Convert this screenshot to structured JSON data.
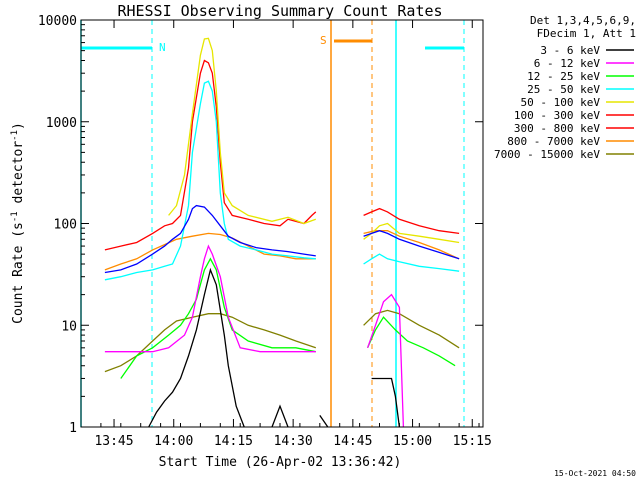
{
  "chart_data": {
    "type": "line",
    "title": "RHESSI Observing Summary Count Rates",
    "xlabel": "Start Time (26-Apr-02 13:36:42)",
    "ylabel": "Count Rate (s⁻¹ detector⁻¹)",
    "ylabel_main": "Count Rate (s",
    "ylabel_sup1": "-1",
    "ylabel_mid": " detector",
    "ylabel_sup2": "-1",
    "ylabel_end": ")",
    "y_scale": "log",
    "ylim": [
      1,
      10000
    ],
    "xlim_minutes_after_start": [
      0,
      101
    ],
    "x_ticks": [
      {
        "label": "13:45",
        "minutes": 8.3
      },
      {
        "label": "14:00",
        "minutes": 23.3
      },
      {
        "label": "14:15",
        "minutes": 38.3
      },
      {
        "label": "14:30",
        "minutes": 53.3
      },
      {
        "label": "14:45",
        "minutes": 68.3
      },
      {
        "label": "15:00",
        "minutes": 83.3
      },
      {
        "label": "15:15",
        "minutes": 98.3
      }
    ],
    "y_ticks": [
      {
        "label": "1",
        "value": 1
      },
      {
        "label": "10",
        "value": 10
      },
      {
        "label": "100",
        "value": 100
      },
      {
        "label": "1000",
        "value": 1000
      },
      {
        "label": "10000",
        "value": 10000
      }
    ],
    "legend_header": [
      "Det 1,3,4,5,6,9,",
      "FDecim 1, Att 1"
    ],
    "legend_position": "right",
    "series": [
      {
        "name": "3 - 6 keV",
        "color": "#000000",
        "points": [
          [
            17,
            1
          ],
          [
            19,
            1.4
          ],
          [
            21,
            1.8
          ],
          [
            23,
            2.2
          ],
          [
            25,
            3
          ],
          [
            27,
            5
          ],
          [
            29,
            9
          ],
          [
            31,
            20
          ],
          [
            32.5,
            35
          ],
          [
            34,
            25
          ],
          [
            36,
            8
          ],
          [
            37,
            4
          ],
          [
            39,
            1.6
          ],
          [
            41,
            1
          ],
          [
            null,
            null
          ],
          [
            48,
            1
          ],
          [
            50,
            1.6
          ],
          [
            52,
            1
          ],
          [
            null,
            null
          ],
          [
            60,
            1.3
          ],
          [
            62,
            1
          ],
          [
            null,
            null
          ],
          [
            73,
            3
          ],
          [
            78,
            3
          ],
          [
            79,
            2
          ],
          [
            80,
            1
          ]
        ]
      },
      {
        "name": "6 - 12 keV",
        "color": "#ff00ff",
        "points": [
          [
            6,
            5.5
          ],
          [
            12,
            5.5
          ],
          [
            18,
            5.5
          ],
          [
            22,
            6
          ],
          [
            26,
            8
          ],
          [
            28,
            12
          ],
          [
            30,
            30
          ],
          [
            31,
            45
          ],
          [
            32,
            60
          ],
          [
            33,
            50
          ],
          [
            35,
            30
          ],
          [
            37,
            12
          ],
          [
            40,
            6
          ],
          [
            45,
            5.5
          ],
          [
            54,
            5.5
          ],
          [
            59,
            5.5
          ],
          [
            null,
            null
          ],
          [
            72,
            6
          ],
          [
            74,
            10
          ],
          [
            76,
            17
          ],
          [
            78,
            20
          ],
          [
            80,
            15
          ],
          [
            81,
            1
          ]
        ]
      },
      {
        "name": "12 - 25 keV",
        "color": "#00ff00",
        "points": [
          [
            10,
            3
          ],
          [
            14,
            5
          ],
          [
            18,
            6
          ],
          [
            22,
            8
          ],
          [
            25,
            10
          ],
          [
            27,
            13
          ],
          [
            29,
            18
          ],
          [
            31,
            35
          ],
          [
            32.5,
            45
          ],
          [
            34,
            35
          ],
          [
            36,
            15
          ],
          [
            38,
            9
          ],
          [
            42,
            7
          ],
          [
            48,
            6
          ],
          [
            54,
            6
          ],
          [
            59,
            5.5
          ],
          [
            null,
            null
          ],
          [
            72,
            6
          ],
          [
            74,
            9
          ],
          [
            76,
            12
          ],
          [
            79,
            9
          ],
          [
            82,
            7
          ],
          [
            86,
            6
          ],
          [
            90,
            5
          ],
          [
            94,
            4
          ]
        ]
      },
      {
        "name": "25 - 50 keV",
        "color": "#00ffff",
        "points": [
          [
            6,
            28
          ],
          [
            10,
            30
          ],
          [
            14,
            33
          ],
          [
            18,
            35
          ],
          [
            21,
            38
          ],
          [
            23,
            40
          ],
          [
            25,
            60
          ],
          [
            27,
            150
          ],
          [
            28,
            500
          ],
          [
            30,
            1500
          ],
          [
            31,
            2400
          ],
          [
            32,
            2500
          ],
          [
            33,
            2000
          ],
          [
            34,
            1000
          ],
          [
            35,
            200
          ],
          [
            36,
            100
          ],
          [
            37,
            70
          ],
          [
            40,
            60
          ],
          [
            44,
            55
          ],
          [
            48,
            50
          ],
          [
            52,
            48
          ],
          [
            56,
            46
          ],
          [
            59,
            45
          ],
          [
            null,
            null
          ],
          [
            71,
            40
          ],
          [
            73,
            45
          ],
          [
            75,
            50
          ],
          [
            77,
            45
          ],
          [
            80,
            42
          ],
          [
            85,
            38
          ],
          [
            90,
            36
          ],
          [
            95,
            34
          ]
        ]
      },
      {
        "name": "50 - 100 keV",
        "color": "#e6e600",
        "points": [
          [
            22,
            120
          ],
          [
            24,
            150
          ],
          [
            26,
            300
          ],
          [
            28,
            1200
          ],
          [
            30,
            4500
          ],
          [
            31,
            6500
          ],
          [
            32,
            6600
          ],
          [
            33,
            5000
          ],
          [
            34,
            2000
          ],
          [
            35,
            500
          ],
          [
            36,
            200
          ],
          [
            38,
            150
          ],
          [
            42,
            120
          ],
          [
            48,
            105
          ],
          [
            52,
            115
          ],
          [
            56,
            100
          ],
          [
            59,
            110
          ],
          [
            null,
            null
          ],
          [
            71,
            70
          ],
          [
            73,
            80
          ],
          [
            75,
            95
          ],
          [
            77,
            100
          ],
          [
            80,
            80
          ],
          [
            85,
            75
          ],
          [
            90,
            70
          ],
          [
            95,
            65
          ]
        ]
      },
      {
        "name": "100 - 300 keV",
        "color": "#ff0000",
        "points": [
          [
            6,
            55
          ],
          [
            10,
            60
          ],
          [
            14,
            65
          ],
          [
            18,
            80
          ],
          [
            21,
            95
          ],
          [
            23,
            100
          ],
          [
            25,
            120
          ],
          [
            27,
            350
          ],
          [
            28,
            1000
          ],
          [
            30,
            3000
          ],
          [
            31,
            4000
          ],
          [
            32,
            3800
          ],
          [
            33,
            3000
          ],
          [
            34,
            1400
          ],
          [
            35,
            400
          ],
          [
            36,
            160
          ],
          [
            38,
            120
          ],
          [
            42,
            110
          ],
          [
            46,
            100
          ],
          [
            50,
            95
          ],
          [
            52,
            110
          ],
          [
            56,
            100
          ],
          [
            58,
            120
          ],
          [
            59,
            130
          ],
          [
            null,
            null
          ],
          [
            71,
            120
          ],
          [
            73,
            130
          ],
          [
            75,
            140
          ],
          [
            77,
            130
          ],
          [
            80,
            110
          ],
          [
            85,
            95
          ],
          [
            90,
            85
          ],
          [
            95,
            80
          ]
        ]
      },
      {
        "name": "300 - 800 keV",
        "color": "#ff0000",
        "points": []
      },
      {
        "name": "800 - 7000 keV",
        "color": "#ff8c00",
        "points": [
          [
            6,
            35
          ],
          [
            10,
            40
          ],
          [
            14,
            45
          ],
          [
            18,
            55
          ],
          [
            21,
            62
          ],
          [
            24,
            70
          ],
          [
            28,
            75
          ],
          [
            32,
            80
          ],
          [
            35,
            78
          ],
          [
            38,
            72
          ],
          [
            42,
            60
          ],
          [
            46,
            50
          ],
          [
            50,
            48
          ],
          [
            54,
            45
          ],
          [
            59,
            45
          ],
          [
            null,
            null
          ],
          [
            71,
            80
          ],
          [
            74,
            85
          ],
          [
            77,
            85
          ],
          [
            80,
            75
          ],
          [
            85,
            65
          ],
          [
            90,
            55
          ],
          [
            95,
            45
          ]
        ]
      },
      {
        "name": "7000 - 15000 keV",
        "color": "#808000",
        "points": [
          [
            6,
            3.5
          ],
          [
            10,
            4
          ],
          [
            14,
            5
          ],
          [
            18,
            7
          ],
          [
            21,
            9
          ],
          [
            24,
            11
          ],
          [
            28,
            12
          ],
          [
            32,
            13
          ],
          [
            35,
            13
          ],
          [
            38,
            12
          ],
          [
            42,
            10
          ],
          [
            46,
            9
          ],
          [
            50,
            8
          ],
          [
            54,
            7
          ],
          [
            59,
            6
          ],
          [
            null,
            null
          ],
          [
            71,
            10
          ],
          [
            74,
            13
          ],
          [
            77,
            14
          ],
          [
            80,
            13
          ],
          [
            85,
            10
          ],
          [
            90,
            8
          ],
          [
            95,
            6
          ]
        ]
      }
    ],
    "extra_series": [
      {
        "name": "blue",
        "color": "#0000ff",
        "points": [
          [
            6,
            33
          ],
          [
            10,
            35
          ],
          [
            14,
            40
          ],
          [
            18,
            50
          ],
          [
            21,
            60
          ],
          [
            23,
            70
          ],
          [
            25,
            80
          ],
          [
            27,
            110
          ],
          [
            28,
            140
          ],
          [
            29,
            150
          ],
          [
            31,
            145
          ],
          [
            33,
            120
          ],
          [
            35,
            95
          ],
          [
            37,
            75
          ],
          [
            40,
            65
          ],
          [
            44,
            58
          ],
          [
            48,
            55
          ],
          [
            52,
            53
          ],
          [
            56,
            50
          ],
          [
            59,
            48
          ],
          [
            null,
            null
          ],
          [
            71,
            75
          ],
          [
            73,
            80
          ],
          [
            75,
            85
          ],
          [
            77,
            80
          ],
          [
            80,
            70
          ],
          [
            85,
            60
          ],
          [
            90,
            52
          ],
          [
            95,
            45
          ]
        ]
      }
    ],
    "annotations": [
      {
        "text": "N",
        "color": "#00ffff"
      },
      {
        "text": "S",
        "color": "#ff8c00"
      }
    ],
    "timestamp": "15-Oct-2021 04:50"
  }
}
